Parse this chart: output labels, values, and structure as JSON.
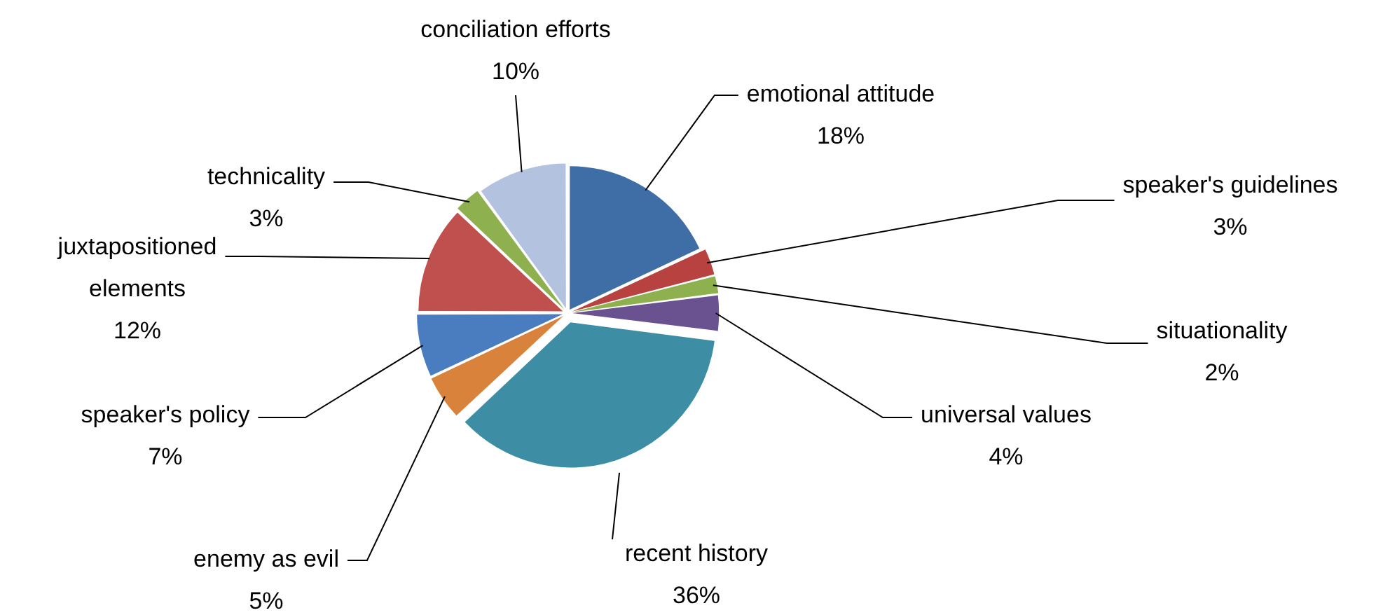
{
  "chart_data": {
    "type": "pie",
    "categories": [
      "emotional attitude",
      "speaker's guidelines",
      "situationality",
      "universal values",
      "recent history",
      "enemy as evil",
      "speaker's policy",
      "juxtapositioned elements",
      "technicality",
      "conciliation efforts"
    ],
    "values": [
      18,
      3,
      2,
      4,
      36,
      5,
      7,
      12,
      3,
      10
    ],
    "value_labels": [
      "18%",
      "3%",
      "2%",
      "4%",
      "36%",
      "5%",
      "7%",
      "12%",
      "3%",
      "10%"
    ],
    "colors": [
      "#3f6da5",
      "#b8423f",
      "#8fb04f",
      "#6a5290",
      "#3d8ea4",
      "#d9823b",
      "#4a7cc0",
      "#c0504d",
      "#8fb04f",
      "#b3c3df"
    ],
    "legend": false
  }
}
